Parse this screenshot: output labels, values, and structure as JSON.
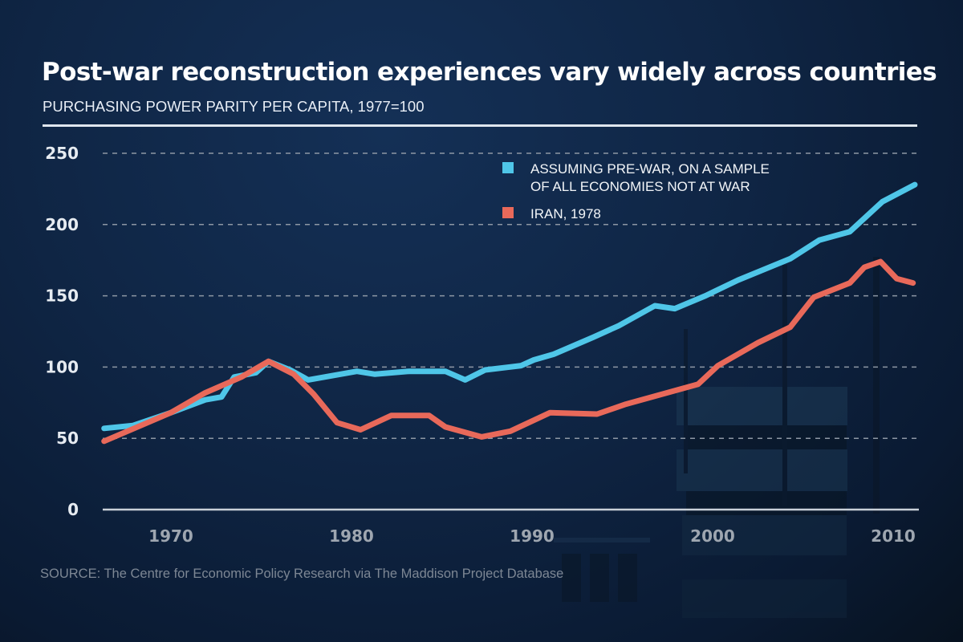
{
  "header": {
    "title": "Post-war reconstruction experiences vary widely across countries",
    "subtitle": "PURCHASING POWER PARITY PER CAPITA, 1977=100"
  },
  "footer": {
    "source": "SOURCE: The Centre for Economic Policy Research via The Maddison Project Database"
  },
  "colors": {
    "background": "#0f2544",
    "series_blue": "#4fc6e8",
    "series_red": "#e8695a",
    "grid": "#8d97a4",
    "text": "#ffffff"
  },
  "chart_data": {
    "type": "line",
    "title": "Post-war reconstruction experiences vary widely across countries",
    "subtitle": "PURCHASING POWER PARITY PER CAPITA, 1977=100",
    "xlabel": "",
    "ylabel": "",
    "xlim": [
      1965.5,
      2012
    ],
    "ylim": [
      0,
      250
    ],
    "xticks": [
      1970,
      1980,
      1990,
      2000,
      2010
    ],
    "xtick_labels": [
      "1970",
      "1980",
      "1990",
      "2000",
      "2010"
    ],
    "yticks": [
      0,
      50,
      100,
      150,
      200,
      250
    ],
    "ytick_labels": [
      "0",
      "50",
      "100",
      "150",
      "200",
      "250"
    ],
    "grid": "horizontal dashed",
    "legend_position": "top-right",
    "series": [
      {
        "name": "ASSUMING PRE-WAR, ON A SAMPLE OF ALL ECONOMIES NOT AT WAR",
        "legend_lines": [
          "ASSUMING PRE-WAR, ON A SAMPLE",
          "OF ALL ECONOMIES NOT AT WAR"
        ],
        "color": "#4fc6e8",
        "x": [
          1966.3,
          1967.9,
          1970,
          1971.9,
          1972.8,
          1973.5,
          1974.7,
          1975.4,
          1976.6,
          1977.6,
          1980.3,
          1981.3,
          1983.2,
          1985.2,
          1986.3,
          1987.4,
          1989.4,
          1990.1,
          1991.2,
          1993.4,
          1994.8,
          1996.8,
          1997.9,
          1999.6,
          2001.4,
          2004.3,
          2005.9,
          2007.6,
          2009.4,
          2011.2
        ],
        "values": [
          57,
          59,
          68,
          77,
          79,
          93,
          96,
          104,
          98,
          91,
          97,
          95,
          97,
          97,
          91,
          98,
          101,
          105,
          109,
          121,
          129,
          143,
          141,
          150,
          161,
          176,
          189,
          195,
          216,
          228
        ]
      },
      {
        "name": "IRAN, 1978",
        "legend_lines": [
          "IRAN, 1978"
        ],
        "color": "#e8695a",
        "x": [
          1966.3,
          1970,
          1971.9,
          1973.9,
          1975.4,
          1976.8,
          1977.9,
          1979.2,
          1980.5,
          1982.2,
          1984.3,
          1985.2,
          1987.2,
          1988.8,
          1991,
          1993.6,
          1995.2,
          1999.2,
          2000.3,
          2002.5,
          2004.3,
          2005.6,
          2007.6,
          2008.4,
          2009.3,
          2010.2,
          2011.1
        ],
        "values": [
          48,
          68,
          82,
          93,
          104,
          95,
          81,
          61,
          56,
          66,
          66,
          58,
          51,
          55,
          68,
          67,
          74,
          88,
          101,
          117,
          128,
          149,
          159,
          170,
          174,
          162,
          159
        ]
      }
    ]
  }
}
